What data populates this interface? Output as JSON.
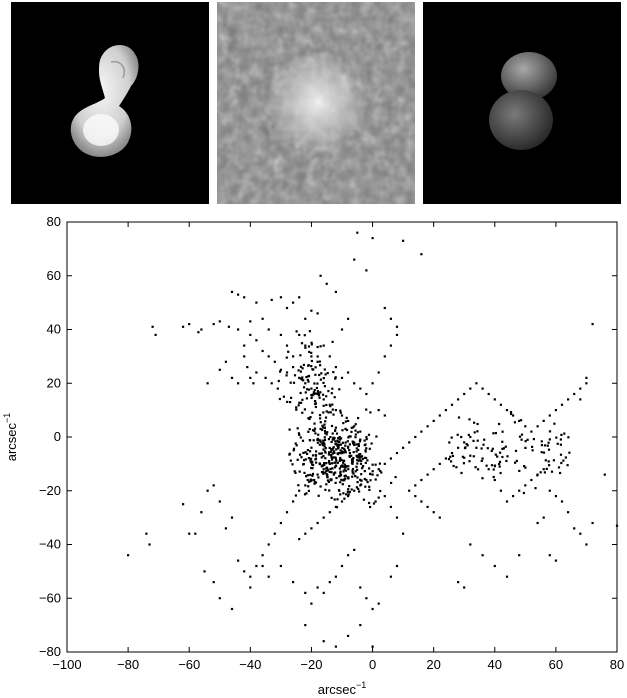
{
  "panels": [
    {
      "name": "shape-model-render"
    },
    {
      "name": "delay-doppler-image"
    },
    {
      "name": "synthetic-model-render"
    }
  ],
  "chart_data": {
    "type": "scatter",
    "title": "",
    "xlabel": "arcsec",
    "xlabel_sup": "−1",
    "ylabel": "arcsec",
    "ylabel_sup": "−1",
    "xlim": [
      -100,
      80
    ],
    "ylim": [
      -80,
      80
    ],
    "xticks": [
      -100,
      -80,
      -60,
      -40,
      -20,
      0,
      20,
      40,
      60,
      80
    ],
    "yticks": [
      -80,
      -60,
      -40,
      -20,
      0,
      20,
      40,
      60,
      80
    ],
    "grid": false,
    "marker_color": "#000000",
    "points_description": "Approx. 1000 uv-plane sample points, densest near (-15,-15) to (0,0); also streaks toward (70,10), (-40,50), (-75,40)",
    "series": [
      {
        "points": [
          [
            -72,
            41
          ],
          [
            -71,
            38
          ],
          [
            -62,
            41
          ],
          [
            -60,
            42
          ],
          [
            -57,
            39
          ],
          [
            -56,
            40
          ],
          [
            -52,
            42
          ],
          [
            -50,
            43
          ],
          [
            -47,
            41
          ],
          [
            -46,
            54
          ],
          [
            -44,
            53
          ],
          [
            -42,
            52
          ],
          [
            -38,
            50
          ],
          [
            -33,
            51
          ],
          [
            -30,
            52
          ],
          [
            -28,
            48
          ],
          [
            -26,
            50
          ],
          [
            -24,
            52
          ],
          [
            -22,
            44
          ],
          [
            -20,
            47
          ],
          [
            -18,
            46
          ],
          [
            -17,
            60
          ],
          [
            -15,
            57
          ],
          [
            -12,
            54
          ],
          [
            -10,
            40
          ],
          [
            -8,
            44
          ],
          [
            -6,
            66
          ],
          [
            -5,
            76
          ],
          [
            -2,
            62
          ],
          [
            0,
            74
          ],
          [
            4,
            48
          ],
          [
            6,
            44
          ],
          [
            8,
            41
          ],
          [
            10,
            73
          ],
          [
            16,
            68
          ],
          [
            -44,
            40
          ],
          [
            -40,
            38
          ],
          [
            -38,
            36
          ],
          [
            -36,
            32
          ],
          [
            -34,
            30
          ],
          [
            -32,
            28
          ],
          [
            -30,
            25
          ],
          [
            -28,
            24
          ],
          [
            -26,
            26
          ],
          [
            -24,
            22
          ],
          [
            -22,
            20
          ],
          [
            -20,
            18
          ],
          [
            -18,
            16
          ],
          [
            -16,
            14
          ],
          [
            -14,
            12
          ],
          [
            -12,
            10
          ],
          [
            -10,
            8
          ],
          [
            -8,
            6
          ],
          [
            -6,
            4
          ],
          [
            -4,
            2
          ],
          [
            -2,
            0
          ],
          [
            -42,
            30
          ],
          [
            -41,
            26
          ],
          [
            -40,
            22
          ],
          [
            -39,
            20
          ],
          [
            -38,
            24
          ],
          [
            -35,
            22
          ],
          [
            -33,
            20
          ],
          [
            -31,
            18
          ],
          [
            -29,
            15
          ],
          [
            -27,
            13
          ],
          [
            -25,
            11
          ],
          [
            -23,
            9
          ],
          [
            -21,
            7
          ],
          [
            -19,
            5
          ],
          [
            -17,
            3
          ],
          [
            -15,
            1
          ],
          [
            -13,
            -1
          ],
          [
            -11,
            -3
          ],
          [
            -9,
            -5
          ],
          [
            -54,
            20
          ],
          [
            -50,
            25
          ],
          [
            -48,
            28
          ],
          [
            -46,
            22
          ],
          [
            -44,
            20
          ],
          [
            -42,
            34
          ],
          [
            -40,
            43
          ],
          [
            -36,
            44
          ],
          [
            -34,
            40
          ],
          [
            -30,
            38
          ],
          [
            -28,
            34
          ],
          [
            -26,
            30
          ],
          [
            -24,
            38
          ],
          [
            -22,
            34
          ],
          [
            -20,
            30
          ],
          [
            -18,
            28
          ],
          [
            -16,
            34
          ],
          [
            -14,
            30
          ],
          [
            -12,
            26
          ],
          [
            -10,
            22
          ],
          [
            -8,
            24
          ],
          [
            -6,
            20
          ],
          [
            -4,
            18
          ],
          [
            -2,
            16
          ],
          [
            0,
            20
          ],
          [
            2,
            24
          ],
          [
            4,
            30
          ],
          [
            6,
            34
          ],
          [
            8,
            38
          ],
          [
            2,
            10
          ],
          [
            4,
            8
          ],
          [
            -62,
            -25
          ],
          [
            -60,
            -36
          ],
          [
            -58,
            -36
          ],
          [
            -56,
            -28
          ],
          [
            -54,
            -20
          ],
          [
            -52,
            -18
          ],
          [
            -50,
            -24
          ],
          [
            -48,
            -34
          ],
          [
            -46,
            -30
          ],
          [
            -44,
            -46
          ],
          [
            -42,
            -50
          ],
          [
            -40,
            -56
          ],
          [
            -38,
            -48
          ],
          [
            -36,
            -44
          ],
          [
            -34,
            -40
          ],
          [
            -32,
            -36
          ],
          [
            -30,
            -32
          ],
          [
            -28,
            -28
          ],
          [
            -26,
            -24
          ],
          [
            -24,
            -20
          ],
          [
            -22,
            -18
          ],
          [
            -20,
            -16
          ],
          [
            -18,
            -14
          ],
          [
            -16,
            -12
          ],
          [
            -14,
            -10
          ],
          [
            -12,
            -8
          ],
          [
            -10,
            -6
          ],
          [
            -8,
            -4
          ],
          [
            -6,
            -2
          ],
          [
            -4,
            -1
          ],
          [
            -80,
            -44
          ],
          [
            -74,
            -36
          ],
          [
            -73,
            -40
          ],
          [
            -55,
            -50
          ],
          [
            -52,
            -54
          ],
          [
            -50,
            -60
          ],
          [
            -46,
            -64
          ],
          [
            -40,
            -52
          ],
          [
            -36,
            -48
          ],
          [
            -34,
            -52
          ],
          [
            -30,
            -48
          ],
          [
            -26,
            -54
          ],
          [
            -22,
            -58
          ],
          [
            -20,
            -62
          ],
          [
            -18,
            -56
          ],
          [
            -16,
            -58
          ],
          [
            -14,
            -54
          ],
          [
            -12,
            -52
          ],
          [
            -10,
            -48
          ],
          [
            -8,
            -44
          ],
          [
            -6,
            -42
          ],
          [
            -4,
            -56
          ],
          [
            -2,
            -60
          ],
          [
            0,
            -64
          ],
          [
            -22,
            -70
          ],
          [
            -16,
            -76
          ],
          [
            -12,
            -78
          ],
          [
            -8,
            -74
          ],
          [
            -4,
            -70
          ],
          [
            0,
            -78
          ],
          [
            2,
            -62
          ],
          [
            6,
            -52
          ],
          [
            8,
            -48
          ],
          [
            -24,
            -38
          ],
          [
            -22,
            -36
          ],
          [
            -20,
            -34
          ],
          [
            -18,
            -32
          ],
          [
            -16,
            -30
          ],
          [
            -14,
            -28
          ],
          [
            -12,
            -26
          ],
          [
            -10,
            -24
          ],
          [
            -8,
            -22
          ],
          [
            -6,
            -20
          ],
          [
            -4,
            -18
          ],
          [
            -2,
            -16
          ],
          [
            0,
            -14
          ],
          [
            2,
            -12
          ],
          [
            4,
            -10
          ],
          [
            6,
            -8
          ],
          [
            8,
            -6
          ],
          [
            10,
            -4
          ],
          [
            12,
            -2
          ],
          [
            14,
            0
          ],
          [
            16,
            2
          ],
          [
            18,
            4
          ],
          [
            20,
            6
          ],
          [
            22,
            8
          ],
          [
            24,
            10
          ],
          [
            26,
            12
          ],
          [
            28,
            14
          ],
          [
            30,
            16
          ],
          [
            32,
            18
          ],
          [
            34,
            20
          ],
          [
            36,
            18
          ],
          [
            38,
            16
          ],
          [
            40,
            14
          ],
          [
            42,
            12
          ],
          [
            44,
            10
          ],
          [
            46,
            8
          ],
          [
            48,
            6
          ],
          [
            50,
            4
          ],
          [
            52,
            2
          ],
          [
            54,
            4
          ],
          [
            56,
            6
          ],
          [
            58,
            8
          ],
          [
            60,
            10
          ],
          [
            62,
            12
          ],
          [
            64,
            14
          ],
          [
            66,
            16
          ],
          [
            68,
            18
          ],
          [
            70,
            20
          ],
          [
            72,
            42
          ],
          [
            70,
            22
          ],
          [
            68,
            14
          ],
          [
            12,
            -20
          ],
          [
            14,
            -18
          ],
          [
            16,
            -16
          ],
          [
            18,
            -14
          ],
          [
            20,
            -12
          ],
          [
            22,
            -10
          ],
          [
            24,
            -8
          ],
          [
            26,
            -6
          ],
          [
            28,
            -4
          ],
          [
            30,
            -2
          ],
          [
            32,
            0
          ],
          [
            34,
            -4
          ],
          [
            36,
            -8
          ],
          [
            38,
            -12
          ],
          [
            40,
            -16
          ],
          [
            42,
            -20
          ],
          [
            44,
            -24
          ],
          [
            46,
            -22
          ],
          [
            48,
            -20
          ],
          [
            50,
            -18
          ],
          [
            52,
            -16
          ],
          [
            54,
            -14
          ],
          [
            56,
            -12
          ],
          [
            58,
            -20
          ],
          [
            60,
            -22
          ],
          [
            62,
            -24
          ],
          [
            64,
            -28
          ],
          [
            66,
            -34
          ],
          [
            68,
            -36
          ],
          [
            70,
            -40
          ],
          [
            72,
            -32
          ],
          [
            80,
            -33
          ],
          [
            76,
            -14
          ],
          [
            60,
            -46
          ],
          [
            58,
            -44
          ],
          [
            56,
            -30
          ],
          [
            54,
            -32
          ],
          [
            48,
            -44
          ],
          [
            44,
            -52
          ],
          [
            40,
            -48
          ],
          [
            36,
            -44
          ],
          [
            32,
            -40
          ],
          [
            30,
            -56
          ],
          [
            28,
            -54
          ],
          [
            22,
            -30
          ],
          [
            20,
            -28
          ],
          [
            18,
            -26
          ],
          [
            16,
            -24
          ],
          [
            14,
            -22
          ],
          [
            10,
            -36
          ],
          [
            8,
            -30
          ],
          [
            6,
            -26
          ],
          [
            4,
            -22
          ]
        ]
      }
    ]
  }
}
